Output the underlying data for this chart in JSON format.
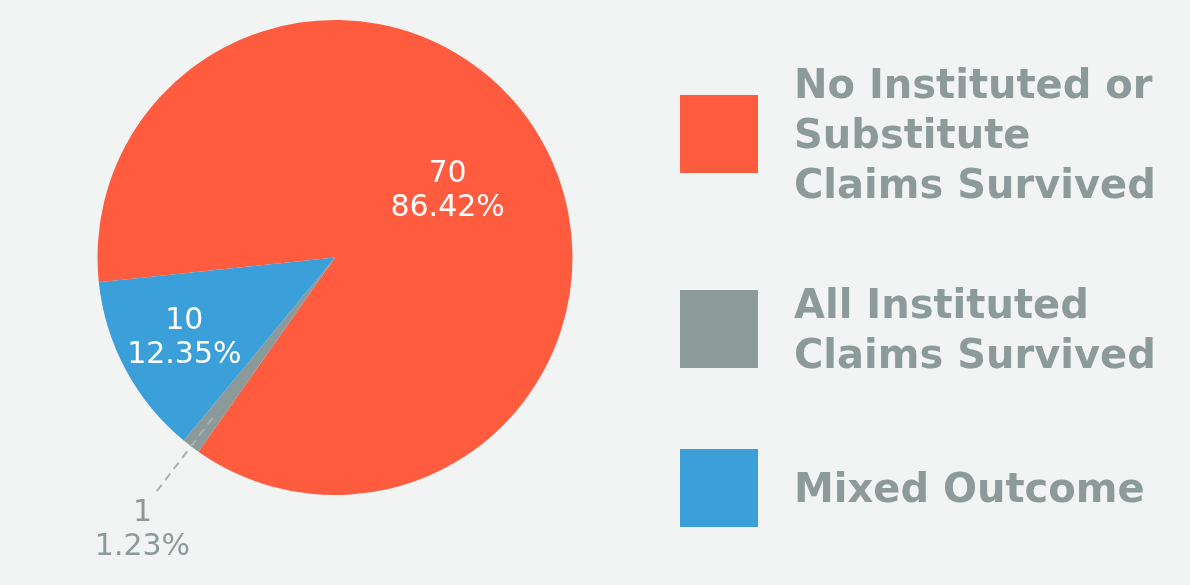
{
  "chart_data": {
    "type": "pie",
    "categories": [
      "No Instituted or Substitute Claims Survived",
      "All Instituted Claims Survived",
      "Mixed Outcome"
    ],
    "values": [
      70,
      1,
      10
    ],
    "colors": [
      "#ff5b3f",
      "#8c9a99",
      "#3b9fd9"
    ],
    "value_labels": [
      "70\n86.42%",
      "1\n1.23%",
      "10\n12.35%"
    ],
    "legend": "right"
  }
}
